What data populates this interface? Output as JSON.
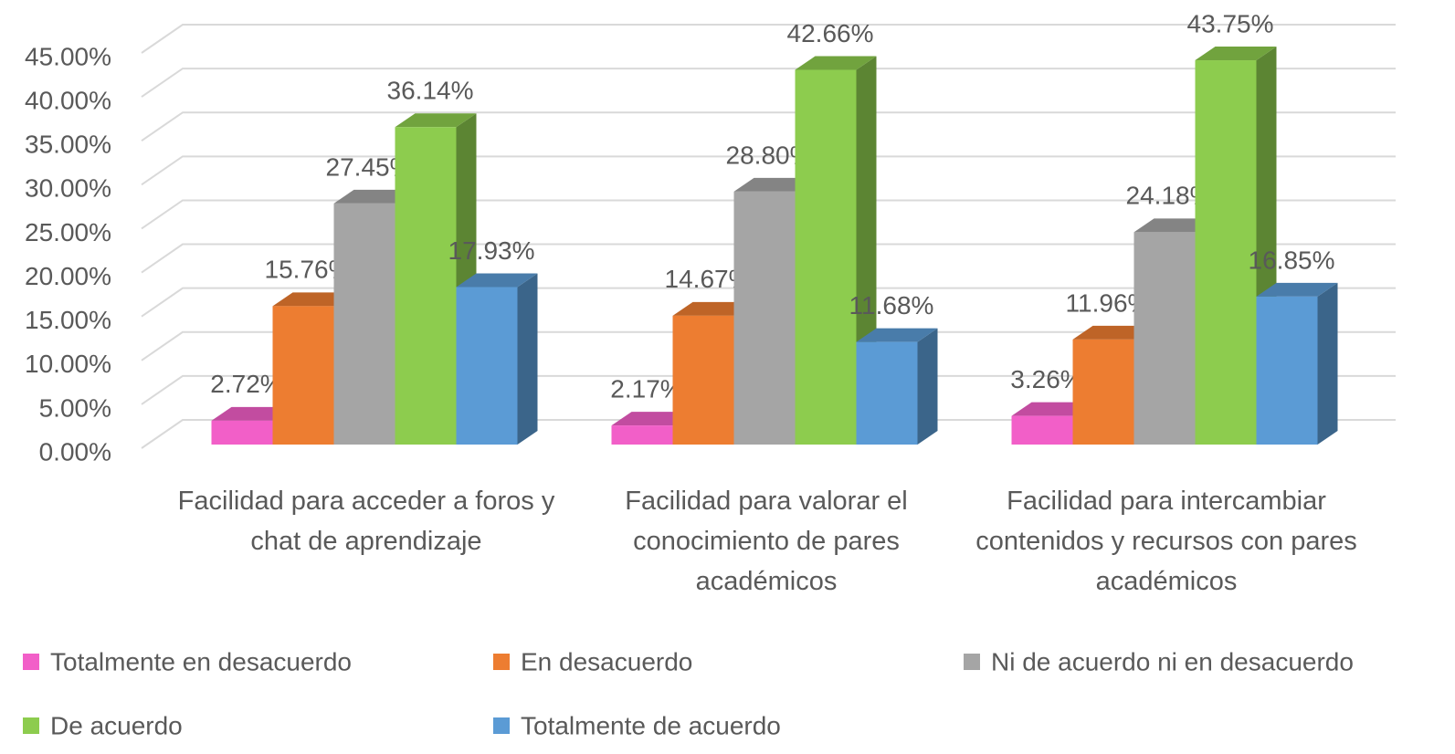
{
  "chart_data": {
    "type": "bar3d",
    "categories": [
      "Facilidad para acceder a foros y chat de aprendizaje",
      "Facilidad para valorar el conocimiento de pares académicos",
      "Facilidad para intercambiar contenidos y recursos con pares académicos"
    ],
    "series": [
      {
        "name": "Totalmente en desacuerdo",
        "color": "#f25fc8",
        "values": [
          2.72,
          2.17,
          3.26
        ],
        "value_labels": [
          "2.72%",
          "2.17%",
          "3.26%"
        ]
      },
      {
        "name": "En desacuerdo",
        "color": "#ed7d31",
        "values": [
          15.76,
          14.67,
          11.96
        ],
        "value_labels": [
          "15.76%",
          "14.67%",
          "11.96%"
        ]
      },
      {
        "name": "Ni de acuerdo ni en desacuerdo",
        "color": "#a5a5a5",
        "values": [
          27.45,
          28.8,
          24.18
        ],
        "value_labels": [
          "27.45%",
          "28.80%",
          "24.18%"
        ]
      },
      {
        "name": "De acuerdo",
        "color": "#8dcc4e",
        "values": [
          36.14,
          42.66,
          43.75
        ],
        "value_labels": [
          "36.14%",
          "42.66%",
          "43.75%"
        ]
      },
      {
        "name": "Totalmente de acuerdo",
        "color": "#5b9bd5",
        "values": [
          17.93,
          11.68,
          16.85
        ],
        "value_labels": [
          "17.93%",
          "11.68%",
          "16.85%"
        ]
      }
    ],
    "ylim": [
      0,
      45
    ],
    "yticks": [
      {
        "value": 0,
        "label": "0.00%"
      },
      {
        "value": 5,
        "label": "5.00%"
      },
      {
        "value": 10,
        "label": "10.00%"
      },
      {
        "value": 15,
        "label": "15.00%"
      },
      {
        "value": 20,
        "label": "20.00%"
      },
      {
        "value": 25,
        "label": "25.00%"
      },
      {
        "value": 30,
        "label": "30.00%"
      },
      {
        "value": 35,
        "label": "35.00%"
      },
      {
        "value": 40,
        "label": "40.00%"
      },
      {
        "value": 45,
        "label": "45.00%"
      }
    ],
    "grid": true,
    "legend": "bottom"
  }
}
